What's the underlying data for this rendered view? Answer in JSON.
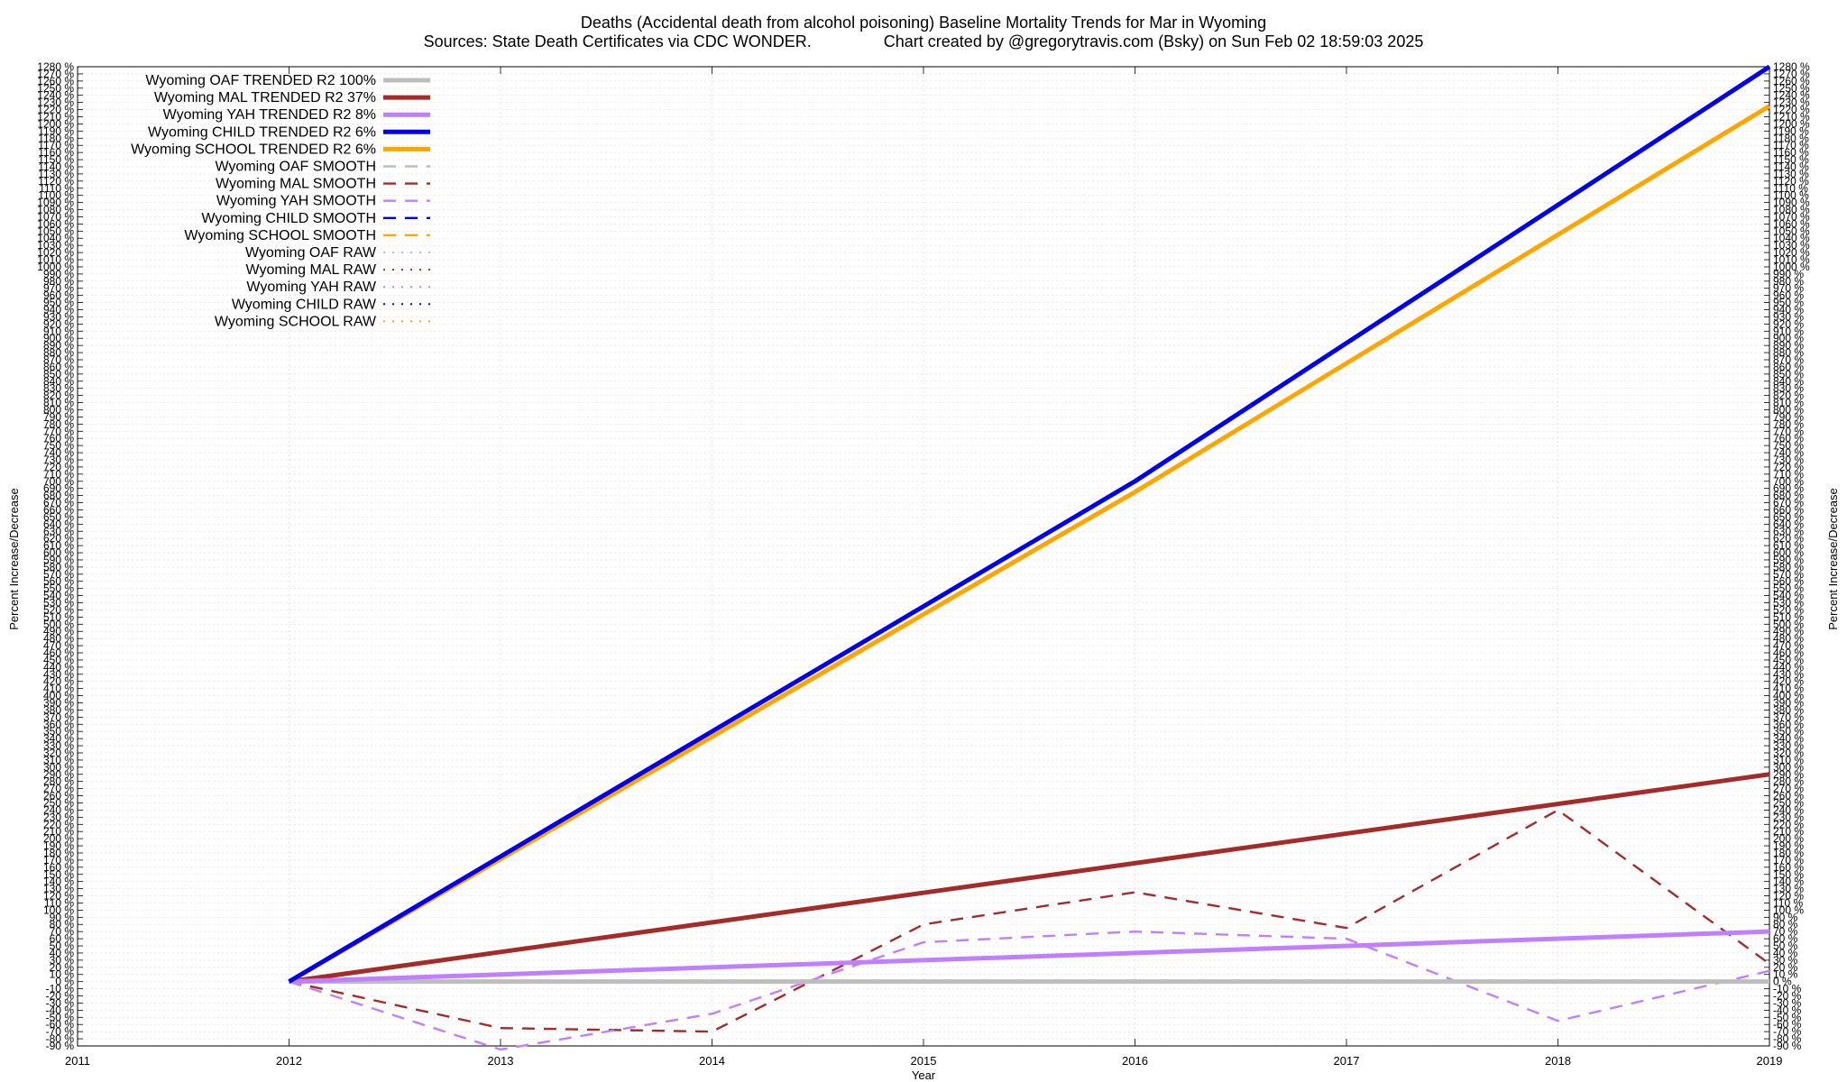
{
  "chart_data": {
    "type": "line",
    "title": "Deaths (Accidental death from alcohol poisoning)  Baseline Mortality Trends for Mar in Wyoming",
    "subtitle": "Sources: State Death Certificates via CDC WONDER.                Chart created by @gregorytravis.com (Bsky) on Sun Feb 02 18:59:03 2025",
    "xlabel": "Year",
    "ylabel": "Percent Increase/Decrease",
    "xlim": [
      2011,
      2019
    ],
    "ylim": [
      -90,
      1280
    ],
    "x_ticks": [
      "2011",
      "2012",
      "2013",
      "2014",
      "2015",
      "2016",
      "2017",
      "2018",
      "2019"
    ],
    "y_ticks_step": 10,
    "y_tick_suffix": " %",
    "grid": true,
    "legend_position": "top-left",
    "series": [
      {
        "name": "Wyoming OAF TRENDED R2 100%",
        "style": "trend",
        "color": "#bdbdbd",
        "x": [
          2012,
          2019
        ],
        "y": [
          0,
          0
        ]
      },
      {
        "name": "Wyoming MAL TRENDED R2  37%",
        "style": "trend",
        "color": "#a52a2a",
        "x": [
          2012,
          2019
        ],
        "y": [
          0,
          290
        ]
      },
      {
        "name": "Wyoming YAH TRENDED R2   8%",
        "style": "trend",
        "color": "#bf7fff",
        "x": [
          2012,
          2019
        ],
        "y": [
          0,
          70
        ]
      },
      {
        "name": "Wyoming CHILD TRENDED R2   6%",
        "style": "trend",
        "color": "#0000ee",
        "x": [
          2012,
          2016,
          2019
        ],
        "y": [
          0,
          700,
          1280
        ]
      },
      {
        "name": "Wyoming SCHOOL TRENDED R2   6%",
        "style": "trend",
        "color": "#ffa500",
        "x": [
          2012,
          2016,
          2019
        ],
        "y": [
          0,
          685,
          1225
        ]
      },
      {
        "name": "Wyoming OAF SMOOTH",
        "style": "smooth",
        "color": "#bdbdbd",
        "x": [],
        "y": []
      },
      {
        "name": "Wyoming MAL SMOOTH",
        "style": "smooth",
        "color": "#a52a2a",
        "x": [
          2012,
          2013,
          2014,
          2015,
          2016,
          2017,
          2018,
          2019
        ],
        "y": [
          0,
          -65,
          -70,
          80,
          125,
          75,
          240,
          25
        ]
      },
      {
        "name": "Wyoming YAH SMOOTH",
        "style": "smooth",
        "color": "#bf7fff",
        "x": [
          2012,
          2013,
          2014,
          2015,
          2016,
          2017,
          2018,
          2019
        ],
        "y": [
          0,
          -95,
          -45,
          55,
          70,
          60,
          -55,
          15
        ]
      },
      {
        "name": "Wyoming CHILD SMOOTH",
        "style": "smooth",
        "color": "#0000ee",
        "x": [],
        "y": []
      },
      {
        "name": "Wyoming SCHOOL SMOOTH",
        "style": "smooth",
        "color": "#ffa500",
        "x": [],
        "y": []
      },
      {
        "name": "Wyoming OAF RAW",
        "style": "raw",
        "color": "#bdbdbd",
        "x": [],
        "y": []
      },
      {
        "name": "Wyoming MAL RAW",
        "style": "raw",
        "color": "#a52a2a",
        "x": [],
        "y": []
      },
      {
        "name": "Wyoming YAH RAW",
        "style": "raw",
        "color": "#bf7fff",
        "x": [],
        "y": []
      },
      {
        "name": "Wyoming CHILD RAW",
        "style": "raw",
        "color": "#0000ee",
        "x": [],
        "y": []
      },
      {
        "name": "Wyoming SCHOOL RAW",
        "style": "raw",
        "color": "#ffa500",
        "x": [],
        "y": []
      }
    ]
  }
}
